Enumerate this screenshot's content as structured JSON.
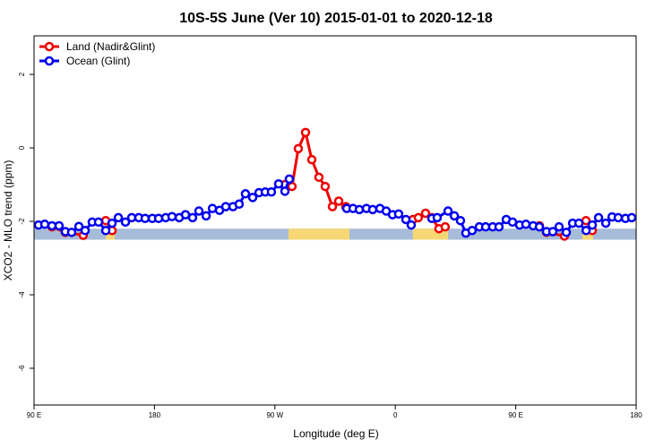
{
  "chart_data": {
    "type": "line",
    "title": "10S-5S June (Ver 10)   2015-01-01 to 2020-12-18",
    "xlabel": "Longitude (deg E)",
    "ylabel": "XCO2 - MLO trend (ppm)",
    "xlim": [
      90,
      540
    ],
    "ylim": [
      -7,
      3.05
    ],
    "xticks": [
      {
        "value": 90,
        "label": "90 E"
      },
      {
        "value": 180,
        "label": "180"
      },
      {
        "value": 270,
        "label": "90 W"
      },
      {
        "value": 360,
        "label": "0"
      },
      {
        "value": 450,
        "label": "90 E"
      },
      {
        "value": 540,
        "label": "180"
      }
    ],
    "yticks": [
      2,
      0,
      -2,
      -4,
      -6
    ],
    "legend": "topleft",
    "grid": false,
    "land_spans": [
      [
        143.6,
        150.3
      ],
      [
        280.2,
        325.7
      ],
      [
        373.2,
        399.4
      ],
      [
        499.8,
        507.8
      ]
    ],
    "series": [
      {
        "name": "Land (Nadir&Glint)",
        "color": "#ee0000",
        "x": [
          103.4,
          113.4,
          126.8,
          null,
          143.6,
          148.3,
          null,
          277.5,
          282.8,
          287.5,
          292.9,
          297.6,
          302.9,
          307.6,
          313,
          317.7,
          323,
          null,
          373.2,
          377.2,
          382.6,
          387.3,
          392.6,
          397.3,
          null,
          467.7,
          473,
          486.4,
          null,
          502.5,
          507.2
        ],
        "values": [
          -2.15,
          -2.3,
          -2.38,
          null,
          -1.98,
          -2.25,
          null,
          -1.0,
          -1.05,
          -0.02,
          0.42,
          -0.32,
          -0.8,
          -1.05,
          -1.6,
          -1.45,
          -1.6,
          null,
          -1.95,
          -1.9,
          -1.78,
          -1.9,
          -2.2,
          -2.15,
          null,
          -2.12,
          -2.3,
          -2.4,
          null,
          -1.98,
          -2.25
        ]
      },
      {
        "name": "Ocean (Glint)",
        "color": "#0000ee",
        "x": [
          93.3,
          98,
          103.4,
          108.7,
          113.4,
          118.1,
          123.5,
          128.2,
          133.5,
          138.2,
          143.6,
          148.3,
          153,
          158.3,
          163,
          168.3,
          173,
          178.4,
          183.1,
          188.4,
          193.1,
          198.5,
          203.2,
          208.5,
          213.2,
          218.6,
          223.3,
          228.6,
          233.3,
          238.7,
          243.3,
          248,
          253.4,
          258.1,
          262.8,
          267.4,
          272.8,
          277.5,
          280.8,
          null,
          323.7,
          328.4,
          333.1,
          338.4,
          343.1,
          348.5,
          353.2,
          357.9,
          362.5,
          367.9,
          371.9,
          null,
          387.3,
          391.3,
          399.4,
          404.1,
          408.7,
          412.7,
          417.4,
          422.8,
          427.5,
          432.8,
          437.5,
          442.9,
          447.6,
          452.9,
          457.6,
          463,
          467.7,
          473,
          477.7,
          482.4,
          487.8,
          492.5,
          497.2,
          502.6,
          507.2,
          511.9,
          517.3,
          522,
          526.6,
          532,
          536.7
        ],
        "values": [
          -2.1,
          -2.08,
          -2.12,
          -2.12,
          -2.28,
          -2.3,
          -2.14,
          -2.25,
          -2.02,
          -2.02,
          -2.25,
          -2.05,
          -1.9,
          -2.02,
          -1.9,
          -1.9,
          -1.92,
          -1.92,
          -1.92,
          -1.9,
          -1.87,
          -1.9,
          -1.82,
          -1.9,
          -1.72,
          -1.85,
          -1.65,
          -1.7,
          -1.6,
          -1.6,
          -1.53,
          -1.25,
          -1.35,
          -1.22,
          -1.2,
          -1.2,
          -0.98,
          -1.18,
          -0.85,
          null,
          -1.65,
          -1.65,
          -1.68,
          -1.65,
          -1.68,
          -1.65,
          -1.72,
          -1.82,
          -1.8,
          -1.95,
          -2.1,
          null,
          -1.92,
          -1.9,
          -1.72,
          -1.85,
          -1.98,
          -2.32,
          -2.25,
          -2.15,
          -2.15,
          -2.15,
          -2.15,
          -1.95,
          -2.02,
          -2.1,
          -2.08,
          -2.12,
          -2.15,
          -2.28,
          -2.28,
          -2.15,
          -2.3,
          -2.05,
          -2.05,
          -2.25,
          -2.1,
          -1.9,
          -2.05,
          -1.88,
          -1.9,
          -1.92,
          -1.9
        ]
      }
    ]
  }
}
